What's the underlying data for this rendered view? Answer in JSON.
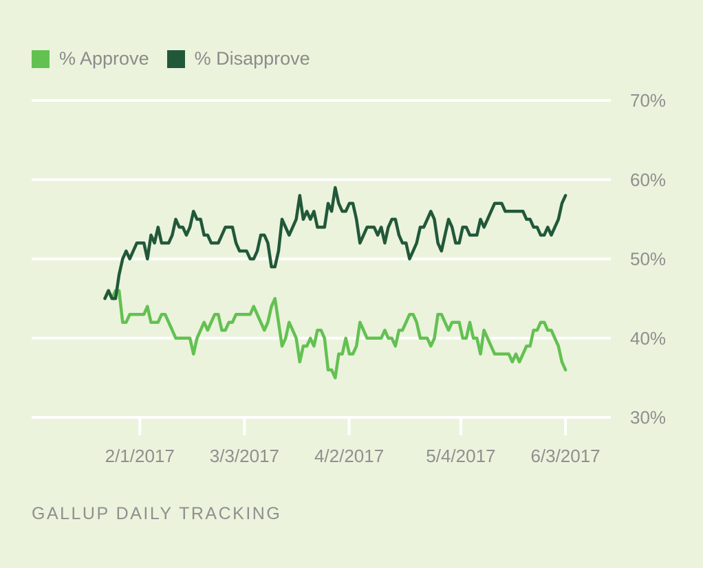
{
  "colors": {
    "background": "#ebf3dc",
    "approve": "#63c152",
    "disapprove": "#22583a",
    "grid": "#ffffff",
    "text": "#8f8f8f"
  },
  "legend": [
    {
      "label": "% Approve",
      "series": "approve"
    },
    {
      "label": "% Disapprove",
      "series": "disapprove"
    }
  ],
  "footer": "GALLUP DAILY TRACKING",
  "chart_data": {
    "type": "line",
    "title": "",
    "xlabel": "",
    "ylabel": "",
    "x_range": [
      "2017-01-22",
      "2017-06-03"
    ],
    "xlim": [
      "2017-01-01",
      "2017-06-16"
    ],
    "x_ticks": [
      {
        "date": "2017-02-01",
        "label": "2/1/2017"
      },
      {
        "date": "2017-03-03",
        "label": "3/3/2017"
      },
      {
        "date": "2017-04-02",
        "label": "4/2/2017"
      },
      {
        "date": "2017-05-04",
        "label": "5/4/2017"
      },
      {
        "date": "2017-06-03",
        "label": "6/3/2017"
      }
    ],
    "ylim": [
      30,
      70
    ],
    "y_ticks": [
      {
        "value": 30,
        "label": "30%"
      },
      {
        "value": 40,
        "label": "40%"
      },
      {
        "value": 50,
        "label": "50%"
      },
      {
        "value": 60,
        "label": "60%"
      },
      {
        "value": 70,
        "label": "70%"
      }
    ],
    "grid": true,
    "legend_position": "top-left",
    "series": [
      {
        "name": "% Approve",
        "key": "approve",
        "values": [
          45,
          46,
          45,
          46,
          46,
          42,
          42,
          43,
          43,
          43,
          43,
          43,
          44,
          42,
          42,
          42,
          43,
          43,
          42,
          41,
          40,
          40,
          40,
          40,
          40,
          38,
          40,
          41,
          42,
          41,
          42,
          43,
          43,
          41,
          41,
          42,
          42,
          43,
          43,
          43,
          43,
          43,
          44,
          43,
          42,
          41,
          42,
          44,
          45,
          42,
          39,
          40,
          42,
          41,
          40,
          37,
          39,
          39,
          40,
          39,
          41,
          41,
          40,
          36,
          36,
          35,
          38,
          38,
          40,
          38,
          38,
          39,
          42,
          41,
          40,
          40,
          40,
          40,
          40,
          41,
          40,
          40,
          39,
          41,
          41,
          42,
          43,
          43,
          42,
          40,
          40,
          40,
          39,
          40,
          43,
          43,
          42,
          41,
          42,
          42,
          42,
          40,
          40,
          42,
          40,
          40,
          38,
          41,
          40,
          39,
          38,
          38,
          38,
          38,
          38,
          37,
          38,
          37,
          38,
          39,
          39,
          41,
          41,
          42,
          42,
          41,
          41,
          40,
          39,
          37,
          36
        ]
      },
      {
        "name": "% Disapprove",
        "key": "disapprove",
        "values": [
          45,
          46,
          45,
          45,
          48,
          50,
          51,
          50,
          51,
          52,
          52,
          52,
          50,
          53,
          52,
          54,
          52,
          52,
          52,
          53,
          55,
          54,
          54,
          53,
          54,
          56,
          55,
          55,
          53,
          53,
          52,
          52,
          52,
          53,
          54,
          54,
          54,
          52,
          51,
          51,
          51,
          50,
          50,
          51,
          53,
          53,
          52,
          49,
          49,
          51,
          55,
          54,
          53,
          54,
          55,
          58,
          55,
          56,
          55,
          56,
          54,
          54,
          54,
          57,
          56,
          59,
          57,
          56,
          56,
          57,
          57,
          55,
          52,
          53,
          54,
          54,
          54,
          53,
          54,
          52,
          54,
          55,
          55,
          53,
          52,
          52,
          50,
          51,
          52,
          54,
          54,
          55,
          56,
          55,
          52,
          51,
          53,
          55,
          54,
          52,
          52,
          54,
          54,
          53,
          53,
          53,
          55,
          54,
          55,
          56,
          57,
          57,
          57,
          56,
          56,
          56,
          56,
          56,
          56,
          55,
          55,
          54,
          54,
          53,
          53,
          54,
          53,
          54,
          55,
          57,
          58
        ]
      }
    ]
  }
}
